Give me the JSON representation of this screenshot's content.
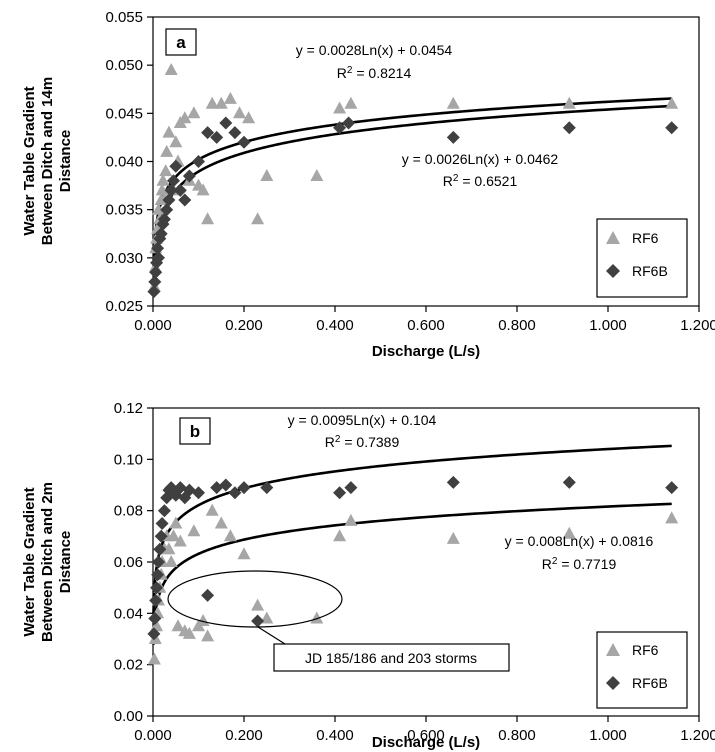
{
  "chart_data": [
    {
      "panel": "a",
      "type": "scatter",
      "xlabel": "Discharge (L/s)",
      "ylabel": [
        "Water Table Gradient",
        "Between Ditch and 14m",
        "Distance"
      ],
      "xlim": [
        0,
        1.2
      ],
      "ylim": [
        0.025,
        0.055
      ],
      "xticks": [
        "0.000",
        "0.200",
        "0.400",
        "0.600",
        "0.800",
        "1.000",
        "1.200"
      ],
      "yticks": [
        "0.025",
        "0.030",
        "0.035",
        "0.040",
        "0.045",
        "0.050",
        "0.055"
      ],
      "grid": false,
      "legend": "bottom-right",
      "series": [
        {
          "name": "RF6",
          "marker": "triangle",
          "color": "#a6a6a6",
          "points": [
            [
              0.003,
              0.027
            ],
            [
              0.005,
              0.029
            ],
            [
              0.006,
              0.031
            ],
            [
              0.008,
              0.032
            ],
            [
              0.01,
              0.033
            ],
            [
              0.012,
              0.035
            ],
            [
              0.015,
              0.034
            ],
            [
              0.018,
              0.036
            ],
            [
              0.02,
              0.037
            ],
            [
              0.022,
              0.038
            ],
            [
              0.025,
              0.036
            ],
            [
              0.028,
              0.039
            ],
            [
              0.03,
              0.041
            ],
            [
              0.035,
              0.043
            ],
            [
              0.04,
              0.0495
            ],
            [
              0.045,
              0.037
            ],
            [
              0.05,
              0.042
            ],
            [
              0.055,
              0.04
            ],
            [
              0.06,
              0.044
            ],
            [
              0.07,
              0.0445
            ],
            [
              0.08,
              0.038
            ],
            [
              0.09,
              0.045
            ],
            [
              0.1,
              0.0375
            ],
            [
              0.11,
              0.037
            ],
            [
              0.12,
              0.034
            ],
            [
              0.13,
              0.046
            ],
            [
              0.15,
              0.046
            ],
            [
              0.17,
              0.0465
            ],
            [
              0.19,
              0.045
            ],
            [
              0.21,
              0.0445
            ],
            [
              0.23,
              0.034
            ],
            [
              0.25,
              0.0385
            ],
            [
              0.36,
              0.0385
            ],
            [
              0.41,
              0.0455
            ],
            [
              0.435,
              0.046
            ],
            [
              0.66,
              0.046
            ],
            [
              0.915,
              0.046
            ],
            [
              1.14,
              0.046
            ]
          ]
        },
        {
          "name": "RF6B",
          "marker": "diamond",
          "color": "#404040",
          "points": [
            [
              0.002,
              0.0265
            ],
            [
              0.004,
              0.0275
            ],
            [
              0.006,
              0.0285
            ],
            [
              0.008,
              0.0295
            ],
            [
              0.01,
              0.031
            ],
            [
              0.012,
              0.03
            ],
            [
              0.015,
              0.032
            ],
            [
              0.018,
              0.0325
            ],
            [
              0.022,
              0.0335
            ],
            [
              0.025,
              0.034
            ],
            [
              0.03,
              0.035
            ],
            [
              0.035,
              0.036
            ],
            [
              0.04,
              0.037
            ],
            [
              0.045,
              0.038
            ],
            [
              0.05,
              0.0395
            ],
            [
              0.06,
              0.037
            ],
            [
              0.07,
              0.036
            ],
            [
              0.08,
              0.0385
            ],
            [
              0.1,
              0.04
            ],
            [
              0.12,
              0.043
            ],
            [
              0.14,
              0.0425
            ],
            [
              0.16,
              0.044
            ],
            [
              0.18,
              0.043
            ],
            [
              0.2,
              0.042
            ],
            [
              0.43,
              0.044
            ],
            [
              0.41,
              0.0435
            ],
            [
              0.66,
              0.0425
            ],
            [
              0.915,
              0.0435
            ],
            [
              1.14,
              0.0435
            ]
          ]
        }
      ],
      "trendlines": [
        {
          "a": 0.0028,
          "b": 0.0454,
          "equation": "y = 0.0028Ln(x) + 0.0454",
          "r2_prefix": "R",
          "r2_sup": "2",
          "r2_value": " = 0.8214"
        },
        {
          "a": 0.0026,
          "b": 0.0462,
          "equation": "y = 0.0026Ln(x) + 0.0462",
          "r2_prefix": "R",
          "r2_sup": "2",
          "r2_value": " = 0.6521"
        }
      ]
    },
    {
      "panel": "b",
      "type": "scatter",
      "xlabel": "Discharge (L/s)",
      "ylabel": [
        "Water Table Gradient",
        "Between Ditch and 2m",
        "Distance"
      ],
      "xlim": [
        0,
        1.2
      ],
      "ylim": [
        0,
        0.12
      ],
      "xticks": [
        "0.000",
        "0.200",
        "0.400",
        "0.600",
        "0.800",
        "1.000",
        "1.200"
      ],
      "yticks": [
        "0.00",
        "0.02",
        "0.04",
        "0.06",
        "0.08",
        "0.10",
        "0.12"
      ],
      "grid": false,
      "legend": "bottom-right",
      "annotation": "JD 185/186 and 203 storms",
      "series": [
        {
          "name": "RF6",
          "marker": "triangle",
          "color": "#a6a6a6",
          "points": [
            [
              0.003,
              0.022
            ],
            [
              0.005,
              0.03
            ],
            [
              0.008,
              0.035
            ],
            [
              0.01,
              0.04
            ],
            [
              0.012,
              0.045
            ],
            [
              0.015,
              0.05
            ],
            [
              0.018,
              0.055
            ],
            [
              0.02,
              0.06
            ],
            [
              0.025,
              0.065
            ],
            [
              0.03,
              0.07
            ],
            [
              0.035,
              0.065
            ],
            [
              0.04,
              0.06
            ],
            [
              0.045,
              0.07
            ],
            [
              0.05,
              0.075
            ],
            [
              0.055,
              0.035
            ],
            [
              0.06,
              0.068
            ],
            [
              0.07,
              0.033
            ],
            [
              0.08,
              0.032
            ],
            [
              0.09,
              0.072
            ],
            [
              0.1,
              0.035
            ],
            [
              0.11,
              0.037
            ],
            [
              0.12,
              0.031
            ],
            [
              0.13,
              0.08
            ],
            [
              0.15,
              0.075
            ],
            [
              0.17,
              0.07
            ],
            [
              0.2,
              0.063
            ],
            [
              0.23,
              0.043
            ],
            [
              0.25,
              0.038
            ],
            [
              0.36,
              0.038
            ],
            [
              0.41,
              0.07
            ],
            [
              0.435,
              0.076
            ],
            [
              0.66,
              0.069
            ],
            [
              0.915,
              0.071
            ],
            [
              1.14,
              0.077
            ]
          ]
        },
        {
          "name": "RF6B",
          "marker": "diamond",
          "color": "#404040",
          "points": [
            [
              0.002,
              0.032
            ],
            [
              0.004,
              0.038
            ],
            [
              0.006,
              0.045
            ],
            [
              0.008,
              0.05
            ],
            [
              0.01,
              0.055
            ],
            [
              0.012,
              0.06
            ],
            [
              0.015,
              0.065
            ],
            [
              0.018,
              0.07
            ],
            [
              0.02,
              0.075
            ],
            [
              0.025,
              0.08
            ],
            [
              0.03,
              0.085
            ],
            [
              0.035,
              0.088
            ],
            [
              0.04,
              0.089
            ],
            [
              0.045,
              0.087
            ],
            [
              0.05,
              0.086
            ],
            [
              0.06,
              0.089
            ],
            [
              0.07,
              0.085
            ],
            [
              0.08,
              0.088
            ],
            [
              0.1,
              0.087
            ],
            [
              0.12,
              0.047
            ],
            [
              0.14,
              0.089
            ],
            [
              0.16,
              0.09
            ],
            [
              0.18,
              0.087
            ],
            [
              0.2,
              0.089
            ],
            [
              0.23,
              0.037
            ],
            [
              0.25,
              0.089
            ],
            [
              0.41,
              0.087
            ],
            [
              0.435,
              0.089
            ],
            [
              0.66,
              0.091
            ],
            [
              0.915,
              0.091
            ],
            [
              1.14,
              0.089
            ]
          ]
        }
      ],
      "trendlines": [
        {
          "a": 0.0095,
          "b": 0.104,
          "equation": "y = 0.0095Ln(x) + 0.104",
          "r2_prefix": "R",
          "r2_sup": "2",
          "r2_value": " = 0.7389"
        },
        {
          "a": 0.008,
          "b": 0.0816,
          "equation": "y = 0.008Ln(x) + 0.0816",
          "r2_prefix": "R",
          "r2_sup": "2",
          "r2_value": " = 0.7719"
        }
      ]
    }
  ]
}
